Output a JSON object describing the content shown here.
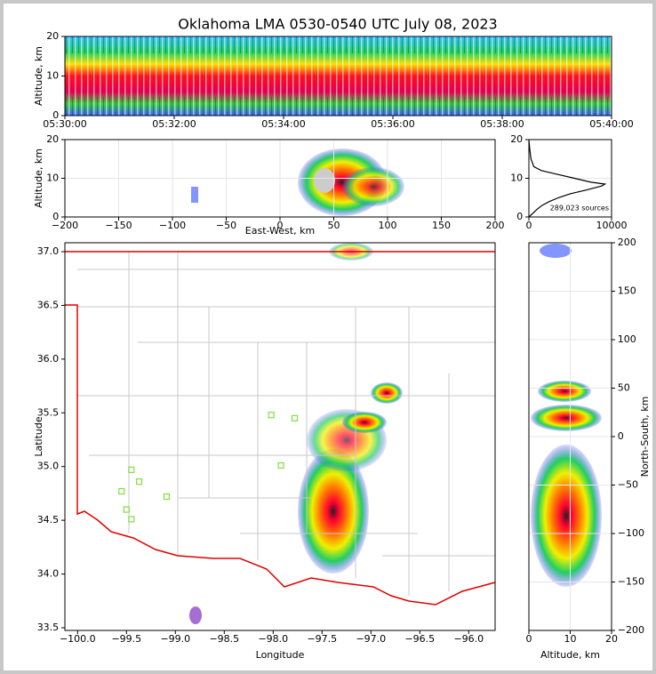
{
  "chart_data": [
    {
      "type": "time-height",
      "title": "Oklahoma LMA 0530-0540 UTC July 08, 2023",
      "ylabel": "Altitude, km",
      "xlim": [
        "05:30:00",
        "05:40:00"
      ],
      "xticks": [
        "05:30:00",
        "05:32:00",
        "05:34:00",
        "05:36:00",
        "05:38:00",
        "05:40:00"
      ],
      "ylim": [
        0,
        20
      ],
      "yticks": [
        0,
        10,
        20
      ],
      "grid": false
    },
    {
      "type": "density",
      "xlabel": "East-West, km",
      "ylabel": "Altitude, km",
      "xlim": [
        -200,
        200
      ],
      "xticks": [
        {
          "value": -200,
          "label": "−200"
        },
        {
          "value": -150,
          "label": "−150"
        },
        {
          "value": -100,
          "label": "−100"
        },
        {
          "value": -50,
          "label": "−50"
        },
        0,
        50,
        100,
        150,
        200
      ],
      "ylim": [
        0,
        20
      ],
      "yticks": [
        0,
        10,
        20
      ],
      "grid": true
    },
    {
      "type": "line",
      "annotation": "289,023 sources",
      "color": "#000000",
      "x": [
        0,
        500,
        1000,
        1600,
        2500,
        3600,
        5000,
        7000,
        8800,
        9200,
        7500,
        5500,
        3500,
        1500,
        600,
        250,
        80,
        0
      ],
      "values": [
        0,
        1,
        2,
        3,
        4,
        5,
        6,
        7,
        8,
        8.5,
        9,
        10,
        11,
        12,
        13,
        15,
        18,
        20
      ],
      "xlim": [
        0,
        10000
      ],
      "xticks": [
        0,
        10000
      ],
      "ylim": [
        0,
        20
      ],
      "yticks": [
        0,
        10,
        20
      ],
      "grid": true
    },
    {
      "type": "map",
      "xlabel": "Longitude",
      "ylabel": "Latitude",
      "series": [
        {
          "color": "#7ee040",
          "x": [
            -98.02,
            -97.78,
            -99.45,
            -99.37,
            -99.55,
            -99.09,
            -99.5,
            -99.45,
            -97.92
          ],
          "values": [
            35.48,
            35.45,
            34.97,
            34.86,
            34.77,
            34.72,
            34.6,
            34.51,
            35.01
          ]
        }
      ],
      "xlim": [
        -100.13,
        -95.73
      ],
      "xticks": [
        {
          "value": -100,
          "label": "−100.0"
        },
        {
          "value": -99.5,
          "label": "−99.5"
        },
        {
          "value": -99,
          "label": "−99.0"
        },
        {
          "value": -98.5,
          "label": "−98.5"
        },
        {
          "value": -98,
          "label": "−98.0"
        },
        {
          "value": -97.5,
          "label": "−97.5"
        },
        {
          "value": -97,
          "label": "−97.0"
        },
        {
          "value": -96.5,
          "label": "−96.5"
        },
        {
          "value": -96,
          "label": "−96.0"
        }
      ],
      "ylim": [
        33.475,
        37.083
      ],
      "yticks": [
        {
          "value": 33.5,
          "label": "33.5"
        },
        {
          "value": 34,
          "label": "34.0"
        },
        34.5,
        {
          "value": 35,
          "label": "35.0"
        },
        35.5,
        {
          "value": 36,
          "label": "36.0"
        },
        36.5,
        {
          "value": 37,
          "label": "37.0"
        }
      ],
      "grid": false
    },
    {
      "type": "density",
      "xlabel": "Altitude, km",
      "ylabel": "North-South, km",
      "y_axis_side": "right",
      "xlim": [
        0,
        20
      ],
      "xticks": [
        0,
        10,
        20
      ],
      "ylim": [
        -200,
        200
      ],
      "yticks": [
        {
          "value": -200,
          "label": "−200"
        },
        {
          "value": -150,
          "label": "−150"
        },
        {
          "value": -100,
          "label": "−100"
        },
        {
          "value": -50,
          "label": "−50"
        },
        0,
        50,
        100,
        150,
        200
      ],
      "grid": true
    }
  ]
}
